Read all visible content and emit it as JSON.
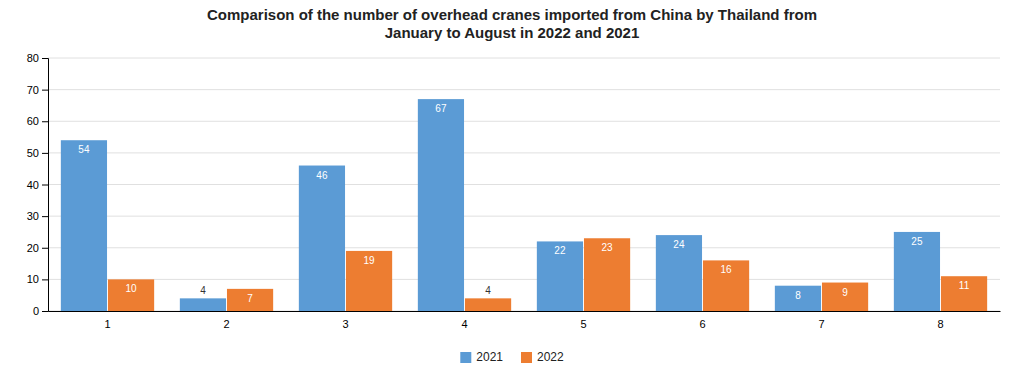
{
  "chart_data": {
    "type": "bar",
    "title": "Comparison of the number of overhead cranes imported from China by Thailand from\nJanuary to August in 2022 and 2021",
    "categories": [
      "1",
      "2",
      "3",
      "4",
      "5",
      "6",
      "7",
      "8"
    ],
    "series": [
      {
        "name": "2021",
        "color": "#5B9BD5",
        "values": [
          54,
          4,
          46,
          67,
          22,
          24,
          8,
          25
        ]
      },
      {
        "name": "2022",
        "color": "#ED7D31",
        "values": [
          10,
          7,
          19,
          4,
          23,
          16,
          9,
          11
        ]
      }
    ],
    "ylim": [
      0,
      80
    ],
    "yticks": [
      0,
      10,
      20,
      30,
      40,
      50,
      60,
      70,
      80
    ],
    "grid": true,
    "legend": "bottom",
    "data_labels": true
  }
}
